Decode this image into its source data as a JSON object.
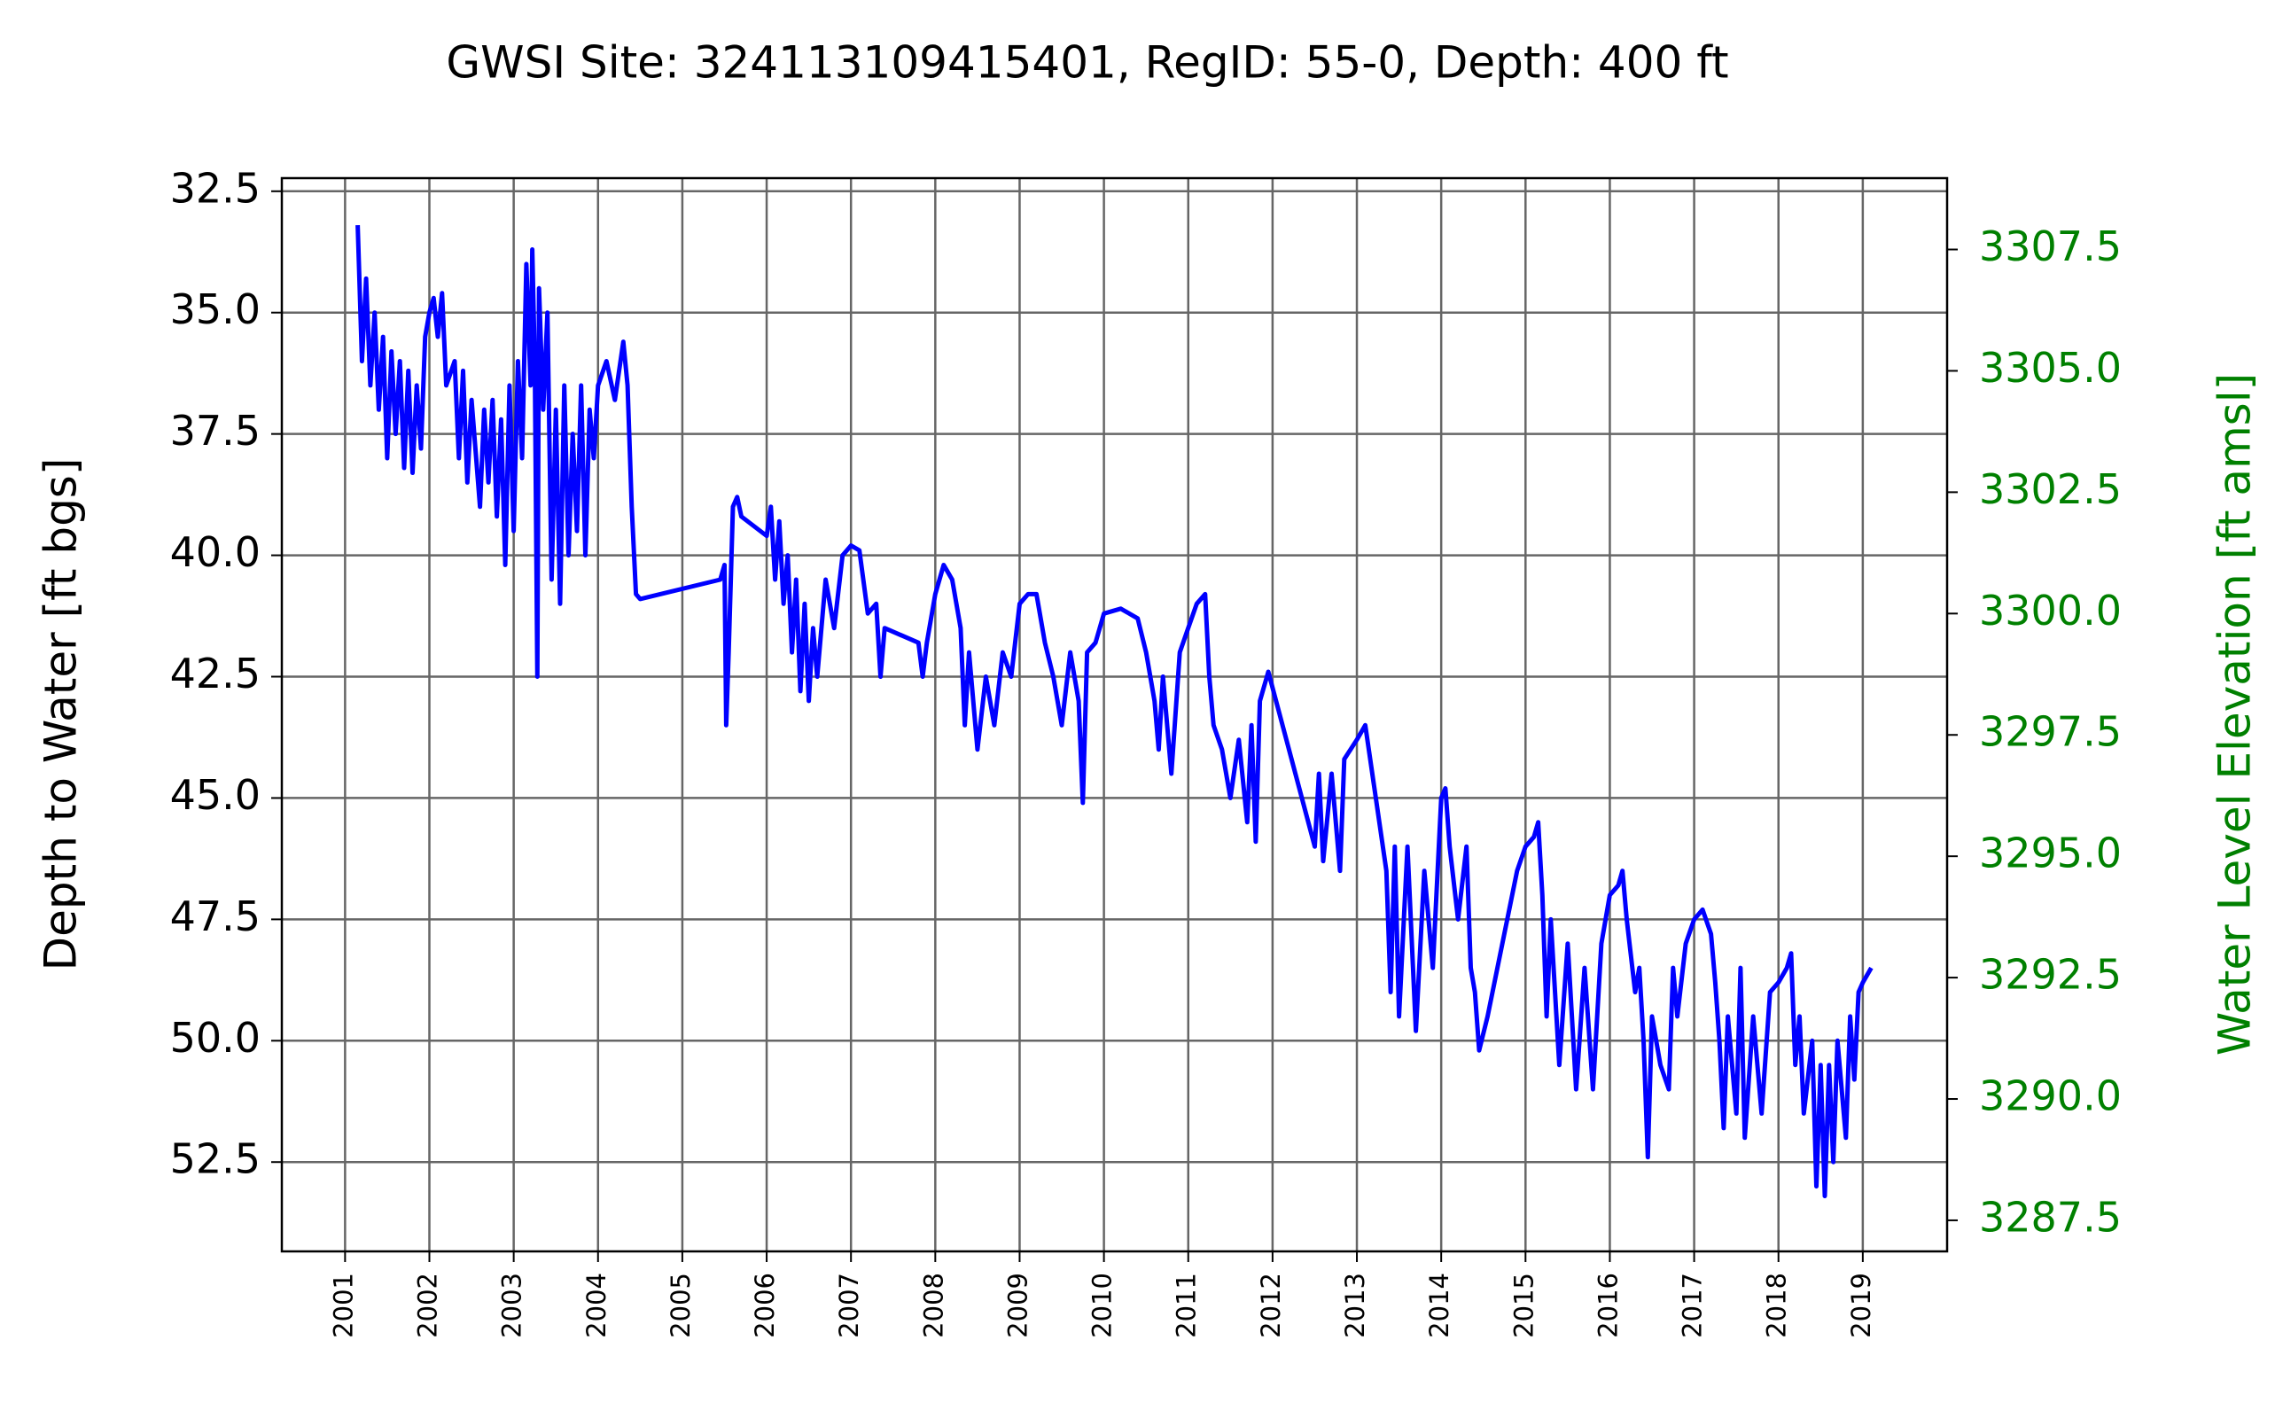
{
  "chart_data": {
    "type": "line",
    "title": "GWSI Site: 324113109415401, RegID: 55-0, Depth: 400 ft",
    "ylabel": "Depth to Water [ft bgs]",
    "y2label": "Water Level Elevation [ft amsl]",
    "xlim": [
      2000.25,
      2020.0
    ],
    "xticks": [
      2001,
      2002,
      2003,
      2004,
      2005,
      2006,
      2007,
      2008,
      2009,
      2010,
      2011,
      2012,
      2013,
      2014,
      2015,
      2016,
      2017,
      2018,
      2019
    ],
    "ylim": [
      32.23,
      54.34
    ],
    "y_inverted": true,
    "yticks": [
      {
        "value": 32.5,
        "label": "32.5"
      },
      {
        "value": 35,
        "label": "35.0"
      },
      {
        "value": 37.5,
        "label": "37.5"
      },
      {
        "value": 40,
        "label": "40.0"
      },
      {
        "value": 42.5,
        "label": "42.5"
      },
      {
        "value": 45,
        "label": "45.0"
      },
      {
        "value": 47.5,
        "label": "47.5"
      },
      {
        "value": 50,
        "label": "50.0"
      },
      {
        "value": 52.5,
        "label": "52.5"
      }
    ],
    "y2lim": [
      3286.86,
      3308.97
    ],
    "y2ticks": [
      {
        "value": 3287.5,
        "label": "3287.5"
      },
      {
        "value": 3290,
        "label": "3290.0"
      },
      {
        "value": 3292.5,
        "label": "3292.5"
      },
      {
        "value": 3295,
        "label": "3295.0"
      },
      {
        "value": 3297.5,
        "label": "3297.5"
      },
      {
        "value": 3300,
        "label": "3300.0"
      },
      {
        "value": 3302.5,
        "label": "3302.5"
      },
      {
        "value": 3305,
        "label": "3305.0"
      },
      {
        "value": 3307.5,
        "label": "3307.5"
      }
    ],
    "y2color": "#008000",
    "grid": true,
    "x": [
      2001.15,
      2001.2,
      2001.25,
      2001.3,
      2001.35,
      2001.4,
      2001.45,
      2001.5,
      2001.55,
      2001.6,
      2001.65,
      2001.7,
      2001.75,
      2001.8,
      2001.85,
      2001.9,
      2001.95,
      2002.0,
      2002.05,
      2002.1,
      2002.15,
      2002.2,
      2002.3,
      2002.35,
      2002.4,
      2002.45,
      2002.5,
      2002.6,
      2002.65,
      2002.7,
      2002.75,
      2002.8,
      2002.85,
      2002.9,
      2002.95,
      2003.0,
      2003.05,
      2003.1,
      2003.15,
      2003.2,
      2003.22,
      2003.25,
      2003.28,
      2003.3,
      2003.35,
      2003.4,
      2003.45,
      2003.5,
      2003.55,
      2003.6,
      2003.65,
      2003.7,
      2003.75,
      2003.8,
      2003.85,
      2003.9,
      2003.95,
      2004.0,
      2004.1,
      2004.2,
      2004.3,
      2004.35,
      2004.4,
      2004.45,
      2004.5,
      2005.45,
      2005.5,
      2005.52,
      2005.55,
      2005.6,
      2005.65,
      2005.7,
      2006.0,
      2006.05,
      2006.1,
      2006.15,
      2006.2,
      2006.25,
      2006.3,
      2006.35,
      2006.4,
      2006.45,
      2006.5,
      2006.55,
      2006.6,
      2006.7,
      2006.8,
      2006.9,
      2007.0,
      2007.1,
      2007.2,
      2007.3,
      2007.35,
      2007.4,
      2007.8,
      2007.85,
      2007.9,
      2008.0,
      2008.1,
      2008.2,
      2008.3,
      2008.35,
      2008.4,
      2008.5,
      2008.6,
      2008.7,
      2008.8,
      2008.9,
      2009.0,
      2009.1,
      2009.2,
      2009.3,
      2009.4,
      2009.5,
      2009.6,
      2009.7,
      2009.75,
      2009.8,
      2009.9,
      2010.0,
      2010.2,
      2010.4,
      2010.5,
      2010.6,
      2010.65,
      2010.7,
      2010.8,
      2010.9,
      2011.0,
      2011.1,
      2011.2,
      2011.25,
      2011.3,
      2011.4,
      2011.5,
      2011.6,
      2011.7,
      2011.75,
      2011.8,
      2011.85,
      2011.95,
      2012.5,
      2012.55,
      2012.6,
      2012.7,
      2012.8,
      2012.85,
      2013.0,
      2013.1,
      2013.35,
      2013.4,
      2013.45,
      2013.5,
      2013.6,
      2013.7,
      2013.8,
      2013.9,
      2014.0,
      2014.05,
      2014.1,
      2014.2,
      2014.3,
      2014.35,
      2014.4,
      2014.45,
      2014.55,
      2014.9,
      2015.0,
      2015.1,
      2015.15,
      2015.2,
      2015.25,
      2015.3,
      2015.4,
      2015.5,
      2015.6,
      2015.7,
      2015.8,
      2015.9,
      2016.0,
      2016.1,
      2016.15,
      2016.2,
      2016.3,
      2016.35,
      2016.4,
      2016.45,
      2016.5,
      2016.6,
      2016.7,
      2016.75,
      2016.8,
      2016.9,
      2017.0,
      2017.1,
      2017.2,
      2017.25,
      2017.3,
      2017.35,
      2017.4,
      2017.5,
      2017.55,
      2017.6,
      2017.7,
      2017.8,
      2017.9,
      2018.0,
      2018.1,
      2018.15,
      2018.2,
      2018.25,
      2018.3,
      2018.4,
      2018.45,
      2018.5,
      2018.55,
      2018.6,
      2018.65,
      2018.7,
      2018.8,
      2018.85,
      2018.9,
      2018.95,
      2019.0,
      2019.1
    ],
    "series": [
      {
        "color": "#0000ff",
        "values": [
          33.2,
          36.0,
          34.3,
          36.5,
          35.0,
          37.0,
          35.5,
          38.0,
          35.8,
          37.5,
          36.0,
          38.2,
          36.2,
          38.3,
          36.5,
          37.8,
          35.5,
          35.0,
          34.7,
          35.5,
          34.6,
          36.5,
          36.0,
          38.0,
          36.2,
          38.5,
          36.8,
          39.0,
          37.0,
          38.5,
          36.8,
          39.2,
          37.2,
          40.2,
          36.5,
          39.5,
          36.0,
          38.0,
          34.0,
          36.5,
          33.7,
          36.0,
          42.5,
          34.5,
          37.0,
          35.0,
          40.5,
          37.0,
          41.0,
          36.5,
          40.0,
          37.5,
          39.5,
          36.5,
          40.0,
          37.0,
          38.0,
          36.5,
          36.0,
          36.8,
          35.6,
          36.5,
          39.0,
          40.8,
          40.9,
          40.5,
          40.2,
          43.5,
          42.0,
          39.0,
          38.8,
          39.2,
          39.6,
          39.0,
          40.5,
          39.3,
          41.0,
          40.0,
          42.0,
          40.5,
          42.8,
          41.0,
          43.0,
          41.5,
          42.5,
          40.5,
          41.5,
          40.0,
          39.8,
          39.9,
          41.2,
          41.0,
          42.5,
          41.5,
          41.8,
          42.5,
          41.8,
          40.8,
          40.2,
          40.5,
          41.5,
          43.5,
          42.0,
          44.0,
          42.5,
          43.5,
          42.0,
          42.5,
          41.0,
          40.8,
          40.8,
          41.8,
          42.5,
          43.5,
          42.0,
          43.0,
          45.1,
          42.0,
          41.8,
          41.2,
          41.1,
          41.3,
          42.0,
          43.0,
          44.0,
          42.5,
          44.5,
          42.0,
          41.5,
          41.0,
          40.8,
          42.5,
          43.5,
          44.0,
          45.0,
          43.8,
          45.5,
          43.5,
          45.9,
          43.0,
          42.4,
          46.0,
          44.5,
          46.3,
          44.5,
          46.5,
          44.2,
          43.8,
          43.5,
          46.5,
          49.0,
          46.0,
          49.5,
          46.0,
          49.8,
          46.5,
          48.5,
          45.0,
          44.8,
          46.0,
          47.5,
          46.0,
          48.5,
          49.0,
          50.2,
          49.5,
          46.5,
          46.0,
          45.8,
          45.5,
          47.0,
          49.5,
          47.5,
          50.5,
          48.0,
          51.0,
          48.5,
          51.0,
          48.0,
          47.0,
          46.8,
          46.5,
          47.5,
          49.0,
          48.5,
          50.0,
          52.4,
          49.5,
          50.5,
          51.0,
          48.5,
          49.5,
          48.0,
          47.5,
          47.3,
          47.8,
          48.8,
          50.0,
          51.8,
          49.5,
          51.5,
          48.5,
          52.0,
          49.5,
          51.5,
          49.0,
          48.8,
          48.5,
          48.2,
          50.5,
          49.5,
          51.5,
          50.0,
          53.0,
          50.5,
          53.2,
          50.5,
          52.5,
          50.0,
          52.0,
          49.5,
          50.8,
          49.0,
          48.8,
          48.5
        ]
      }
    ]
  }
}
